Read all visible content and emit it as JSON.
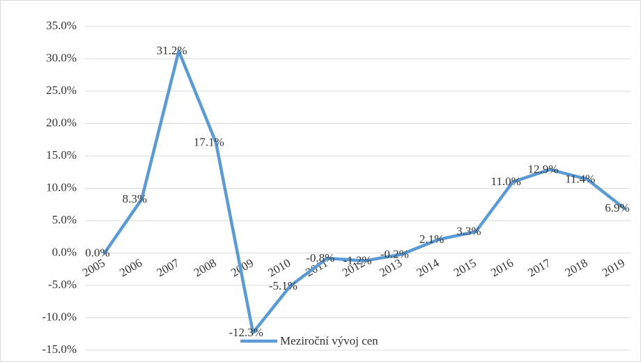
{
  "chart_data": {
    "type": "line",
    "categories": [
      "2005",
      "2006",
      "2007",
      "2008",
      "2009",
      "2010",
      "2011",
      "2012",
      "2013",
      "2014",
      "2015",
      "2016",
      "2017",
      "2018",
      "2019"
    ],
    "series": [
      {
        "name": "Meziroční vývoj cen",
        "color": "#5b9bd5",
        "values": [
          0.0,
          8.3,
          31.2,
          17.1,
          -12.3,
          -5.1,
          -0.8,
          -1.2,
          -0.2,
          2.1,
          3.3,
          11.0,
          12.9,
          11.4,
          6.9
        ],
        "value_labels": [
          "0.0%",
          "8.3%",
          "31.2%",
          "17.1%",
          "-12.3%",
          "-5.1%",
          "-0.8%",
          "-1.2%",
          "-0.2%",
          "2.1%",
          "3.3%",
          "11.0%",
          "12.9%",
          "11.4%",
          "6.9%"
        ]
      }
    ],
    "ylim": [
      -15,
      35
    ],
    "yticks": [
      {
        "value": -15,
        "label": "-15.0%"
      },
      {
        "value": -10,
        "label": "-10.0%"
      },
      {
        "value": -5,
        "label": "-5.0%"
      },
      {
        "value": 0,
        "label": "0.0%"
      },
      {
        "value": 5,
        "label": "5.0%"
      },
      {
        "value": 10,
        "label": "10.0%"
      },
      {
        "value": 15,
        "label": "15.0%"
      },
      {
        "value": 20,
        "label": "20.0%"
      },
      {
        "value": 25,
        "label": "25.0%"
      },
      {
        "value": 30,
        "label": "30.0%"
      },
      {
        "value": 35,
        "label": "35.0%"
      }
    ],
    "grid": true,
    "legend": "bottom"
  }
}
